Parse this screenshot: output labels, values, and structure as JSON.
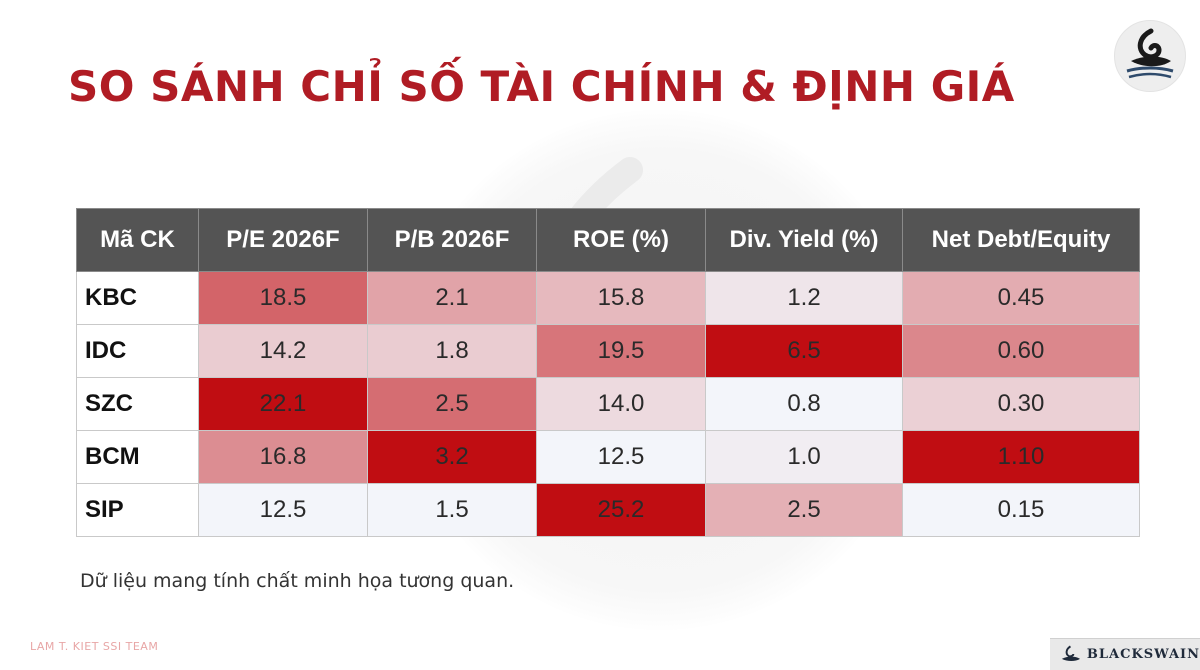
{
  "title": "SO SÁNH CHỈ SỐ TÀI CHÍNH & ĐỊNH GIÁ",
  "chart_data": {
    "type": "table",
    "columns": [
      "Mã CK",
      "P/E 2026F",
      "P/B 2026F",
      "ROE (%)",
      "Div. Yield (%)",
      "Net Debt/Equity"
    ],
    "rows": [
      {
        "code": "KBC",
        "values": [
          "18.5",
          "2.1",
          "15.8",
          "1.2",
          "0.45"
        ]
      },
      {
        "code": "IDC",
        "values": [
          "14.2",
          "1.8",
          "19.5",
          "6.5",
          "0.60"
        ]
      },
      {
        "code": "SZC",
        "values": [
          "22.1",
          "2.5",
          "14.0",
          "0.8",
          "0.30"
        ]
      },
      {
        "code": "BCM",
        "values": [
          "16.8",
          "3.2",
          "12.5",
          "1.0",
          "1.10"
        ]
      },
      {
        "code": "SIP",
        "values": [
          "12.5",
          "1.5",
          "25.2",
          "2.5",
          "0.15"
        ]
      }
    ],
    "heatmap_colors": {
      "low": "#f3f5fa",
      "high": "#c00d12"
    }
  },
  "note": "Dữ liệu mang tính chất minh họa tương quan.",
  "footer": {
    "team": "LAM T. KIET SSI TEAM",
    "brand": "BLACKSWAIN"
  },
  "icons": {
    "logo": "black-swan-logo-icon",
    "watermark": "swan-watermark-icon"
  }
}
